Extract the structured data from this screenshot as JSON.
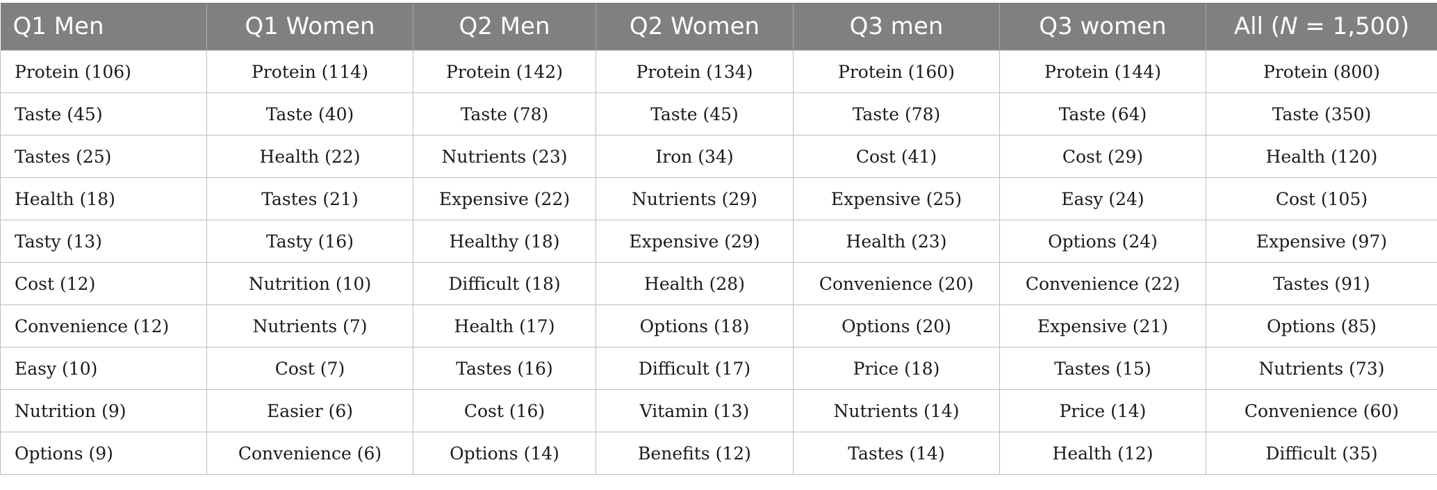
{
  "table": {
    "headers": [
      {
        "label": "Q1 Men"
      },
      {
        "label": "Q1 Women"
      },
      {
        "label": "Q2 Men"
      },
      {
        "label": "Q2 Women"
      },
      {
        "label": "Q3 men"
      },
      {
        "label": "Q3 women"
      },
      {
        "label_pre": "All (",
        "label_ital": "N",
        "label_post": " = 1,500)"
      }
    ],
    "rows": [
      [
        "Protein (106)",
        "Protein (114)",
        "Protein (142)",
        "Protein (134)",
        "Protein (160)",
        "Protein (144)",
        "Protein (800)"
      ],
      [
        "Taste (45)",
        "Taste (40)",
        "Taste (78)",
        "Taste (45)",
        "Taste (78)",
        "Taste (64)",
        "Taste (350)"
      ],
      [
        "Tastes (25)",
        "Health (22)",
        "Nutrients (23)",
        "Iron (34)",
        "Cost (41)",
        "Cost (29)",
        "Health (120)"
      ],
      [
        "Health (18)",
        "Tastes (21)",
        "Expensive (22)",
        "Nutrients (29)",
        "Expensive (25)",
        "Easy (24)",
        "Cost (105)"
      ],
      [
        "Tasty (13)",
        "Tasty (16)",
        "Healthy (18)",
        "Expensive (29)",
        "Health (23)",
        "Options (24)",
        "Expensive (97)"
      ],
      [
        "Cost (12)",
        "Nutrition (10)",
        "Difficult (18)",
        "Health (28)",
        "Convenience (20)",
        "Convenience (22)",
        "Tastes (91)"
      ],
      [
        "Convenience (12)",
        "Nutrients (7)",
        "Health (17)",
        "Options (18)",
        "Options (20)",
        "Expensive (21)",
        "Options (85)"
      ],
      [
        "Easy (10)",
        "Cost (7)",
        "Tastes (16)",
        "Difficult (17)",
        "Price (18)",
        "Tastes (15)",
        "Nutrients (73)"
      ],
      [
        "Nutrition (9)",
        "Easier (6)",
        "Cost (16)",
        "Vitamin (13)",
        "Nutrients (14)",
        "Price (14)",
        "Convenience (60)"
      ],
      [
        "Options (9)",
        "Convenience (6)",
        "Options (14)",
        "Benefits (12)",
        "Tastes (14)",
        "Health (12)",
        "Difficult (35)"
      ]
    ]
  }
}
